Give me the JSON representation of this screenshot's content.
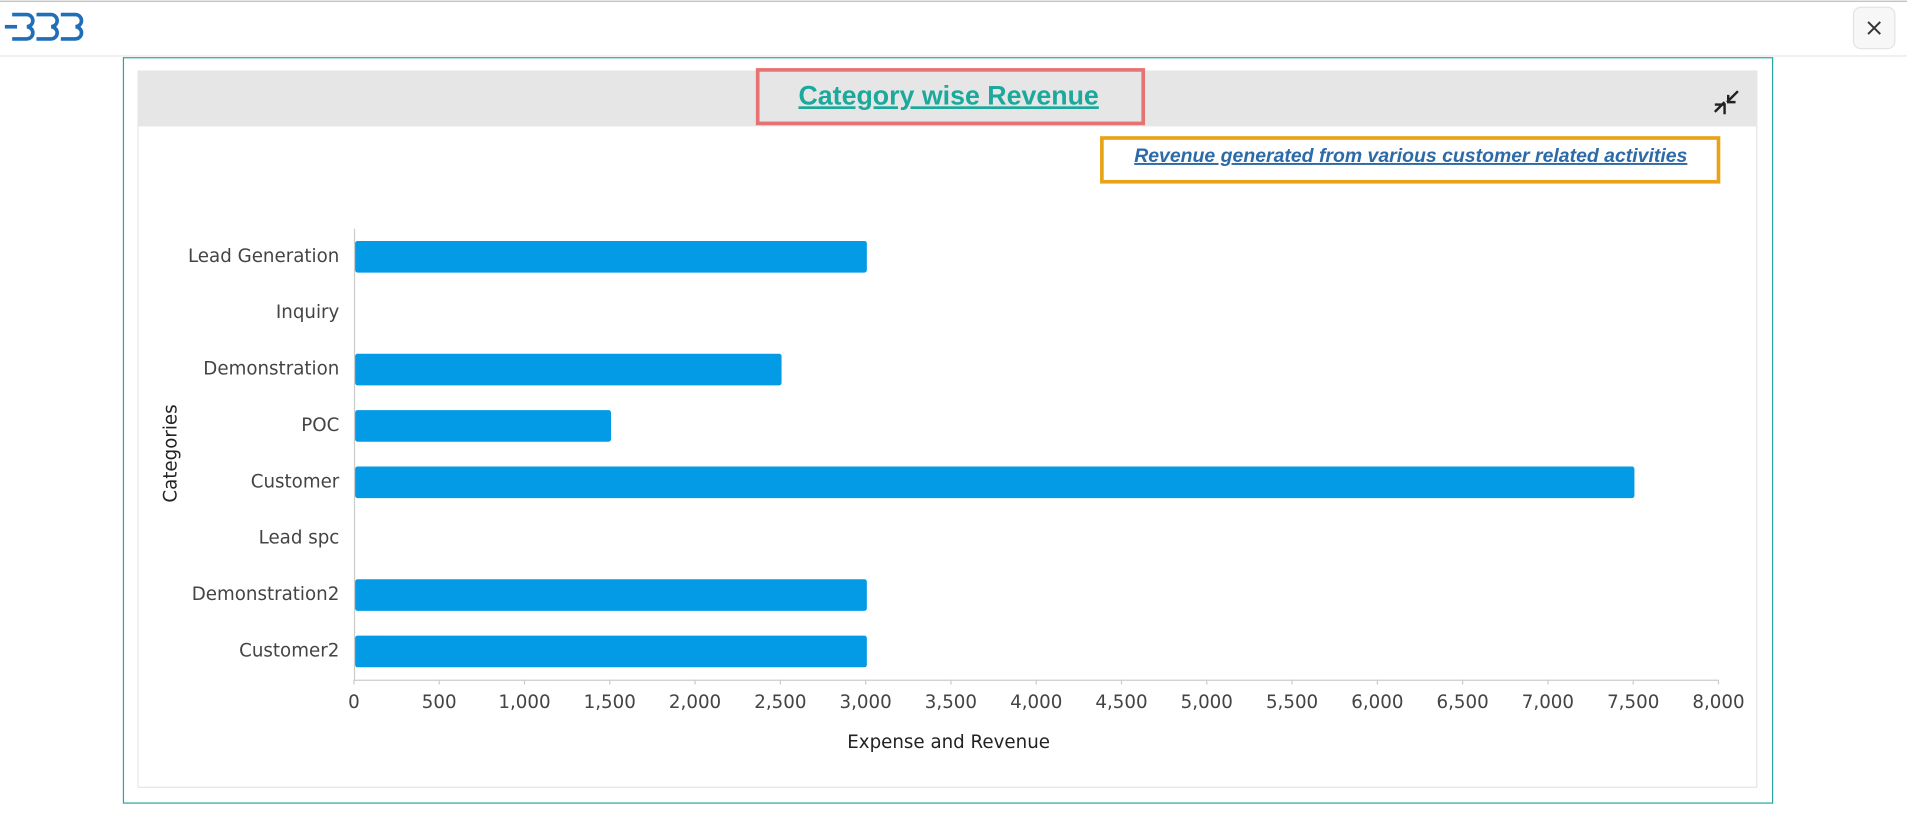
{
  "chart_data": {
    "type": "hbar",
    "title": "Category wise Revenue",
    "subtitle": "Revenue generated from various customer related activities",
    "x_label": "Expense and Revenue",
    "y_label": "Categories",
    "categories": [
      "Lead Generation",
      "Inquiry",
      "Demonstration",
      "POC",
      "Customer",
      "Lead spc",
      "Demonstration2",
      "Customer2"
    ],
    "values": [
      3000,
      0,
      2500,
      1500,
      7500,
      0,
      3000,
      3000
    ],
    "color": "#039be5",
    "xlim": [
      0,
      8000
    ],
    "xticks": [
      0,
      500,
      {
        "value": 1000,
        "label": "1,000"
      },
      {
        "value": 1500,
        "label": "1,500"
      },
      {
        "value": 2000,
        "label": "2,000"
      },
      {
        "value": 2500,
        "label": "2,500"
      },
      {
        "value": 3000,
        "label": "3,000"
      },
      {
        "value": 3500,
        "label": "3,500"
      },
      {
        "value": 4000,
        "label": "4,000"
      },
      {
        "value": 4500,
        "label": "4,500"
      },
      {
        "value": 5000,
        "label": "5,000"
      },
      {
        "value": 5500,
        "label": "5,500"
      },
      {
        "value": 6000,
        "label": "6,000"
      },
      {
        "value": 6500,
        "label": "6,500"
      },
      {
        "value": 7000,
        "label": "7,000"
      },
      {
        "value": 7500,
        "label": "7,500"
      },
      {
        "value": 8000,
        "label": "8,000"
      }
    ]
  }
}
